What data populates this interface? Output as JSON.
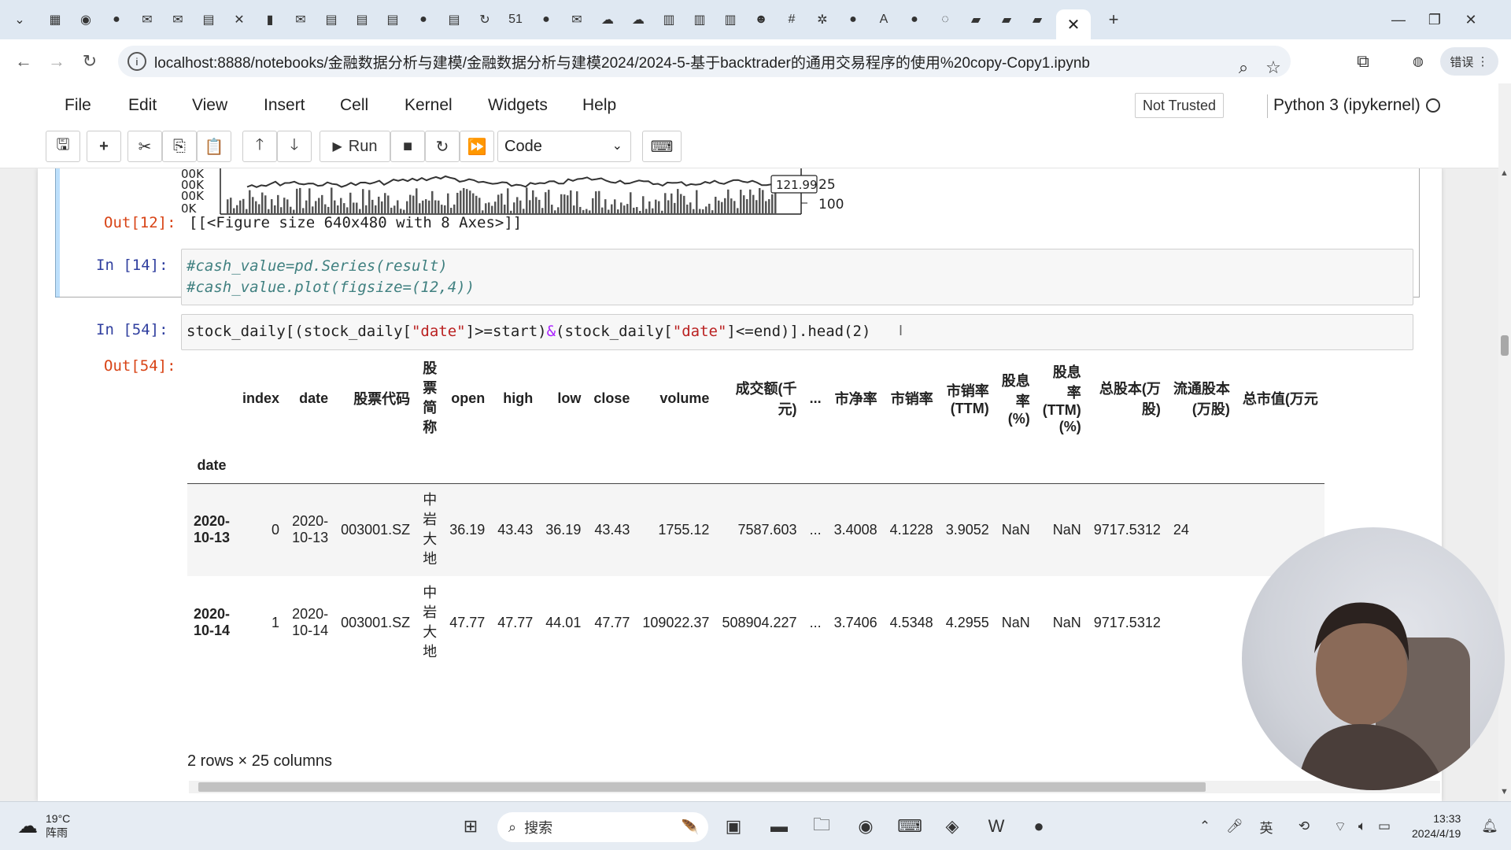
{
  "browser": {
    "tab_icons": [
      "chevron-down",
      "calendar",
      "chrome",
      "github",
      "mail",
      "mail",
      "document",
      "crossed",
      "book",
      "mail",
      "document",
      "document",
      "document",
      "github",
      "document",
      "refresh",
      "51",
      "github",
      "mail",
      "cloud",
      "cloud",
      "grid",
      "grid",
      "grid",
      "person",
      "hash",
      "wechat",
      "github",
      "translate",
      "github",
      "loading",
      "box",
      "box",
      "box"
    ],
    "active_tab_close": "✕",
    "new_tab": "+",
    "url": "localhost:8888/notebooks/金融数据分析与建模/金融数据分析与建模2024/2024-5-基于backtrader的通用交易程序的使用%20copy-Copy1.ipynb",
    "error_label": "错误"
  },
  "menu": {
    "items": [
      "File",
      "Edit",
      "View",
      "Insert",
      "Cell",
      "Kernel",
      "Widgets",
      "Help"
    ],
    "trust": "Not Trusted",
    "kernel": "Python 3 (ipykernel)"
  },
  "toolbar": {
    "run_label": "Run",
    "cell_type": "Code"
  },
  "chart_data": {
    "type": "line",
    "visible_labels": [
      "121.99",
      "25",
      "100"
    ],
    "left_ticks": [
      "00K",
      "00K",
      "00K",
      "0K"
    ]
  },
  "cells": {
    "out12_prompt": "Out[12]:",
    "out12_text": "[[<Figure size 640x480 with 8 Axes>]]",
    "in14_prompt": "In  [14]:",
    "in14_line1": "#cash_value=pd.Series(result)",
    "in14_line2": "#cash_value.plot(figsize=(12,4))",
    "in54_prompt": "In  [54]:",
    "in54_code_a": "stock_daily[(stock_daily[",
    "in54_str1": "\"date\"",
    "in54_code_b": "]>=start)",
    "in54_op": "&",
    "in54_code_c": "(stock_daily[",
    "in54_str2": "\"date\"",
    "in54_code_d": "]<=end)].head(2)",
    "out54_prompt": "Out[54]:"
  },
  "dataframe": {
    "columns": [
      "index",
      "date",
      "股票代码",
      "股票简称",
      "open",
      "high",
      "low",
      "close",
      "volume",
      "成交额(千元)",
      "...",
      "市净率",
      "市销率",
      "市销率(TTM)",
      "股息率(%)",
      "股息率(TTM)(%)",
      "总股本(万股)",
      "流通股本(万股)",
      "总市值(万元"
    ],
    "col_short_name_chars": [
      "股",
      "票",
      "简",
      "称"
    ],
    "col_turnover": [
      "成交额(千",
      "元)"
    ],
    "col_ps_ttm": [
      "市销率",
      "(TTM)"
    ],
    "col_div": [
      "股息",
      "率",
      "(%)"
    ],
    "col_div_ttm": [
      "股息",
      "率",
      "(TTM)",
      "(%)"
    ],
    "col_total_shares": [
      "总股本(万",
      "股)"
    ],
    "col_float_shares": [
      "流通股本",
      "(万股)"
    ],
    "index_name": "date",
    "rows": [
      {
        "idx": [
          "2020-",
          "10-13"
        ],
        "index": "0",
        "date": [
          "2020-",
          "10-13"
        ],
        "code": "003001.SZ",
        "name": [
          "中",
          "岩",
          "大",
          "地"
        ],
        "open": "36.19",
        "high": "43.43",
        "low": "36.19",
        "close": "43.43",
        "volume": "1755.12",
        "turnover": "7587.603",
        "ellipsis": "...",
        "pb": "3.4008",
        "ps": "4.1228",
        "ps_ttm": "3.9052",
        "div": "NaN",
        "div_ttm": "NaN",
        "total": "9717.5312",
        "float": "24"
      },
      {
        "idx": [
          "2020-",
          "10-14"
        ],
        "index": "1",
        "date": [
          "2020-",
          "10-14"
        ],
        "code": "003001.SZ",
        "name": [
          "中",
          "岩",
          "大",
          "地"
        ],
        "open": "47.77",
        "high": "47.77",
        "low": "44.01",
        "close": "47.77",
        "volume": "109022.37",
        "turnover": "508904.227",
        "ellipsis": "...",
        "pb": "3.7406",
        "ps": "4.5348",
        "ps_ttm": "4.2955",
        "div": "NaN",
        "div_ttm": "NaN",
        "total": "9717.5312",
        "float": ""
      }
    ],
    "shape_note": "2 rows × 25 columns"
  },
  "taskbar": {
    "temperature": "19°C",
    "weather": "阵雨",
    "search_placeholder": "搜索",
    "time": "13:33",
    "date": "2024/4/19"
  }
}
